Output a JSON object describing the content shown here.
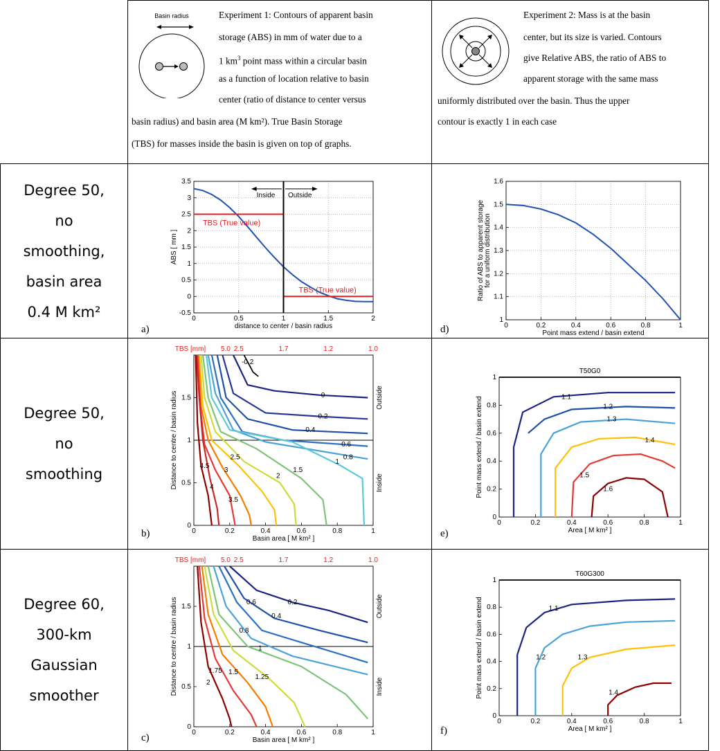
{
  "header": {
    "exp1": {
      "diagram_label": "Basin radius",
      "lines": [
        "Experiment 1: Contours of apparent basin",
        "storage (ABS) in mm of water due to a",
        "point mass within a circular basin",
        "as a function of location relative to basin",
        "center (ratio of distance to center versus",
        "basin radius) and basin area (M km²). True Basin Storage",
        "(TBS) for masses inside the basin is given on top of graphs."
      ],
      "line3_prefix": "1 km",
      "line3_sup": "3"
    },
    "exp2": {
      "lines": [
        "Experiment 2: Mass is at the basin",
        "center, but its size is varied. Contours",
        "give Relative ABS, the ratio of ABS to",
        "apparent storage with the same mass",
        "uniformly distributed over the basin. Thus the upper",
        "contour is exactly 1 in each case"
      ]
    }
  },
  "rows": [
    {
      "label_lines": [
        "Degree 50,",
        "no",
        "smoothing,",
        "basin area",
        "0.4 M km²"
      ]
    },
    {
      "label_lines": [
        "Degree 50,",
        "no",
        "smoothing"
      ]
    },
    {
      "label_lines": [
        "Degree 60,",
        "300-km",
        "Gaussian",
        "smoother"
      ]
    }
  ],
  "panel_letters": [
    "a)",
    "b)",
    "c)",
    "d)",
    "e)",
    "f)"
  ],
  "colors": {
    "curve_blue": "#2050b0",
    "tbs_red": "#e02020",
    "contours_cool": [
      "#1a237e",
      "#283593",
      "#1e4fa8",
      "#2a6fc0",
      "#4aa3d8",
      "#5cc8d8"
    ],
    "contours_warm": [
      "#8b0000",
      "#c62828",
      "#e53935",
      "#f57c00",
      "#ffc107",
      "#cddc39",
      "#7cc576"
    ]
  },
  "chart_data": [
    {
      "id": "a",
      "type": "line",
      "xlabel": "distance to center / basin radius",
      "ylabel": "ABS [ mm ]",
      "xlim": [
        0,
        2
      ],
      "ylim": [
        -0.5,
        3.5
      ],
      "xticks": [
        "0",
        "0.5",
        "1",
        "1.5",
        "2"
      ],
      "yticks": [
        "-0.5",
        "0",
        "0.5",
        "1",
        "1.5",
        "2",
        "2.5",
        "3",
        "3.5"
      ],
      "grid": true,
      "x": [
        0,
        0.1,
        0.2,
        0.3,
        0.4,
        0.5,
        0.6,
        0.7,
        0.8,
        0.9,
        1.0,
        1.1,
        1.2,
        1.3,
        1.4,
        1.5,
        1.6,
        1.7,
        1.8,
        1.9,
        2.0
      ],
      "y": [
        3.28,
        3.22,
        3.1,
        2.93,
        2.7,
        2.43,
        2.12,
        1.8,
        1.48,
        1.18,
        0.9,
        0.66,
        0.45,
        0.28,
        0.13,
        0.02,
        -0.07,
        -0.12,
        -0.15,
        -0.16,
        -0.16
      ],
      "tbs_inside": {
        "value": 2.5,
        "label": "TBS (True value)"
      },
      "tbs_outside": {
        "value": 0.0,
        "label": "TBS (True value)"
      },
      "arrow_left": "Inside",
      "arrow_right": "Outside"
    },
    {
      "id": "d",
      "type": "line",
      "xlabel": "Point mass extend / basin extend",
      "ylabel_lines": [
        "Ratio of ABS to apparent storage",
        "for a uniform distribution"
      ],
      "xlim": [
        0,
        1
      ],
      "ylim": [
        1,
        1.6
      ],
      "xticks": [
        "0",
        "0.2",
        "0.4",
        "0.6",
        "0.8",
        "1"
      ],
      "yticks": [
        "1",
        "1.1",
        "1.2",
        "1.3",
        "1.4",
        "1.5",
        "1.6"
      ],
      "grid": true,
      "x": [
        0,
        0.1,
        0.2,
        0.3,
        0.4,
        0.5,
        0.6,
        0.7,
        0.8,
        0.9,
        1.0
      ],
      "y": [
        1.5,
        1.495,
        1.48,
        1.455,
        1.42,
        1.37,
        1.31,
        1.24,
        1.17,
        1.09,
        1.0
      ]
    },
    {
      "id": "b",
      "type": "contour",
      "xlabel": "Basin area [ M km² ]",
      "ylabel": "Distance to centre / basin radius",
      "xlim": [
        0,
        1
      ],
      "ylim": [
        0,
        2
      ],
      "xticks": [
        "0",
        "0.2",
        "0.4",
        "0.6",
        "0.8",
        "1"
      ],
      "yticks": [
        "0",
        "0.5",
        "1",
        "1.5"
      ],
      "top_label": "TBS [mm]",
      "top_ticks": [
        "5.0",
        "2.5",
        "1.7",
        "1.2",
        "1.0"
      ],
      "side_outside": "Outside",
      "side_inside": "Inside",
      "contour_labels": [
        "-0.2",
        "0",
        "0.2",
        "0.4",
        "0.6",
        "0.8",
        "1",
        "1.5",
        "2",
        "2.5",
        "3",
        "3.5",
        "4",
        "4.5"
      ]
    },
    {
      "id": "e",
      "type": "contour",
      "title": "T50G0",
      "xlabel": "Area [ M km² ]",
      "ylabel": "Point mass extend / basin extend",
      "xlim": [
        0,
        1
      ],
      "ylim": [
        0,
        1
      ],
      "xticks": [
        "0",
        "0.2",
        "0.4",
        "0.6",
        "0.8",
        "1"
      ],
      "yticks": [
        "0",
        "0.2",
        "0.4",
        "0.6",
        "0.8",
        "1"
      ],
      "contour_labels": [
        "1",
        "1.1",
        "1.2",
        "1.3",
        "1.4",
        "1.5",
        "1.6"
      ]
    },
    {
      "id": "c",
      "type": "contour",
      "xlabel": "Basin area [ M km² ]",
      "ylabel": "Distance to centre / basin radius",
      "xlim": [
        0,
        1
      ],
      "ylim": [
        0,
        2
      ],
      "xticks": [
        "0",
        "0.2",
        "0.4",
        "0.6",
        "0.8",
        "1"
      ],
      "yticks": [
        "0",
        "0.5",
        "1",
        "1.5"
      ],
      "top_label": "TBS [mm]",
      "top_ticks": [
        "5.0",
        "2.5",
        "1.7",
        "1.2",
        "1.0"
      ],
      "side_outside": "Outside",
      "side_inside": "Inside",
      "contour_labels": [
        "0.2",
        "0.4",
        "0.6",
        "0.8",
        "1",
        "1.25",
        "1.5",
        "1.75",
        "2"
      ]
    },
    {
      "id": "f",
      "type": "contour",
      "title": "T60G300",
      "xlabel": "Area [ M km² ]",
      "ylabel": "Point mass extend / basin extend",
      "xlim": [
        0,
        1
      ],
      "ylim": [
        0,
        1
      ],
      "xticks": [
        "0",
        "0.2",
        "0.4",
        "0.6",
        "0.8",
        "1"
      ],
      "yticks": [
        "0",
        "0.2",
        "0.4",
        "0.6",
        "0.8",
        "1"
      ],
      "contour_labels": [
        "1.1",
        "1.2",
        "1.3",
        "1.4"
      ]
    }
  ]
}
